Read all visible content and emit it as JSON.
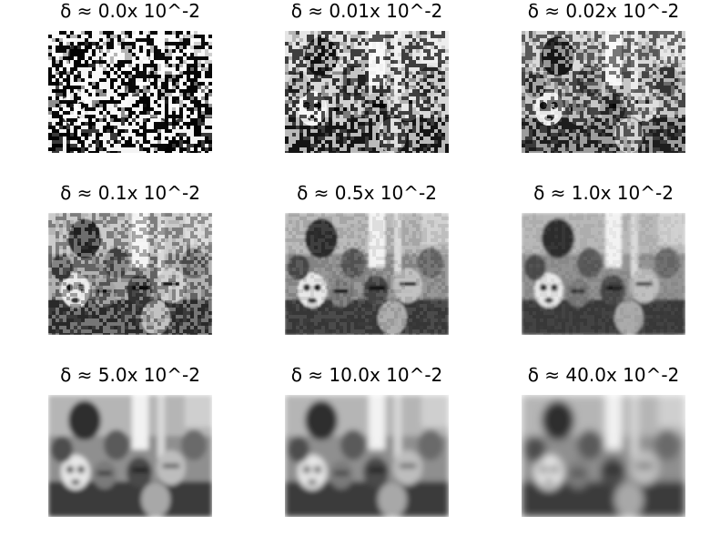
{
  "figure": {
    "panels": [
      {
        "title": "δ ≈ 0.0x 10^-2",
        "blur": 0.0,
        "noise": 0.95
      },
      {
        "title": "δ ≈ 0.01x 10^-2",
        "blur": 0.2,
        "noise": 0.65
      },
      {
        "title": "δ ≈ 0.02x 10^-2",
        "blur": 0.35,
        "noise": 0.5
      },
      {
        "title": "δ ≈ 0.1x 10^-2",
        "blur": 0.7,
        "noise": 0.3
      },
      {
        "title": "δ ≈ 0.5x 10^-2",
        "blur": 1.4,
        "noise": 0.08
      },
      {
        "title": "δ ≈ 1.0x 10^-2",
        "blur": 1.7,
        "noise": 0.04
      },
      {
        "title": "δ ≈ 5.0x 10^-2",
        "blur": 2.6,
        "noise": 0.0
      },
      {
        "title": "δ ≈ 10.0x 10^-2",
        "blur": 3.2,
        "noise": 0.0
      },
      {
        "title": "δ ≈ 40.0x 10^-2",
        "blur": 4.4,
        "noise": 0.0
      }
    ]
  }
}
